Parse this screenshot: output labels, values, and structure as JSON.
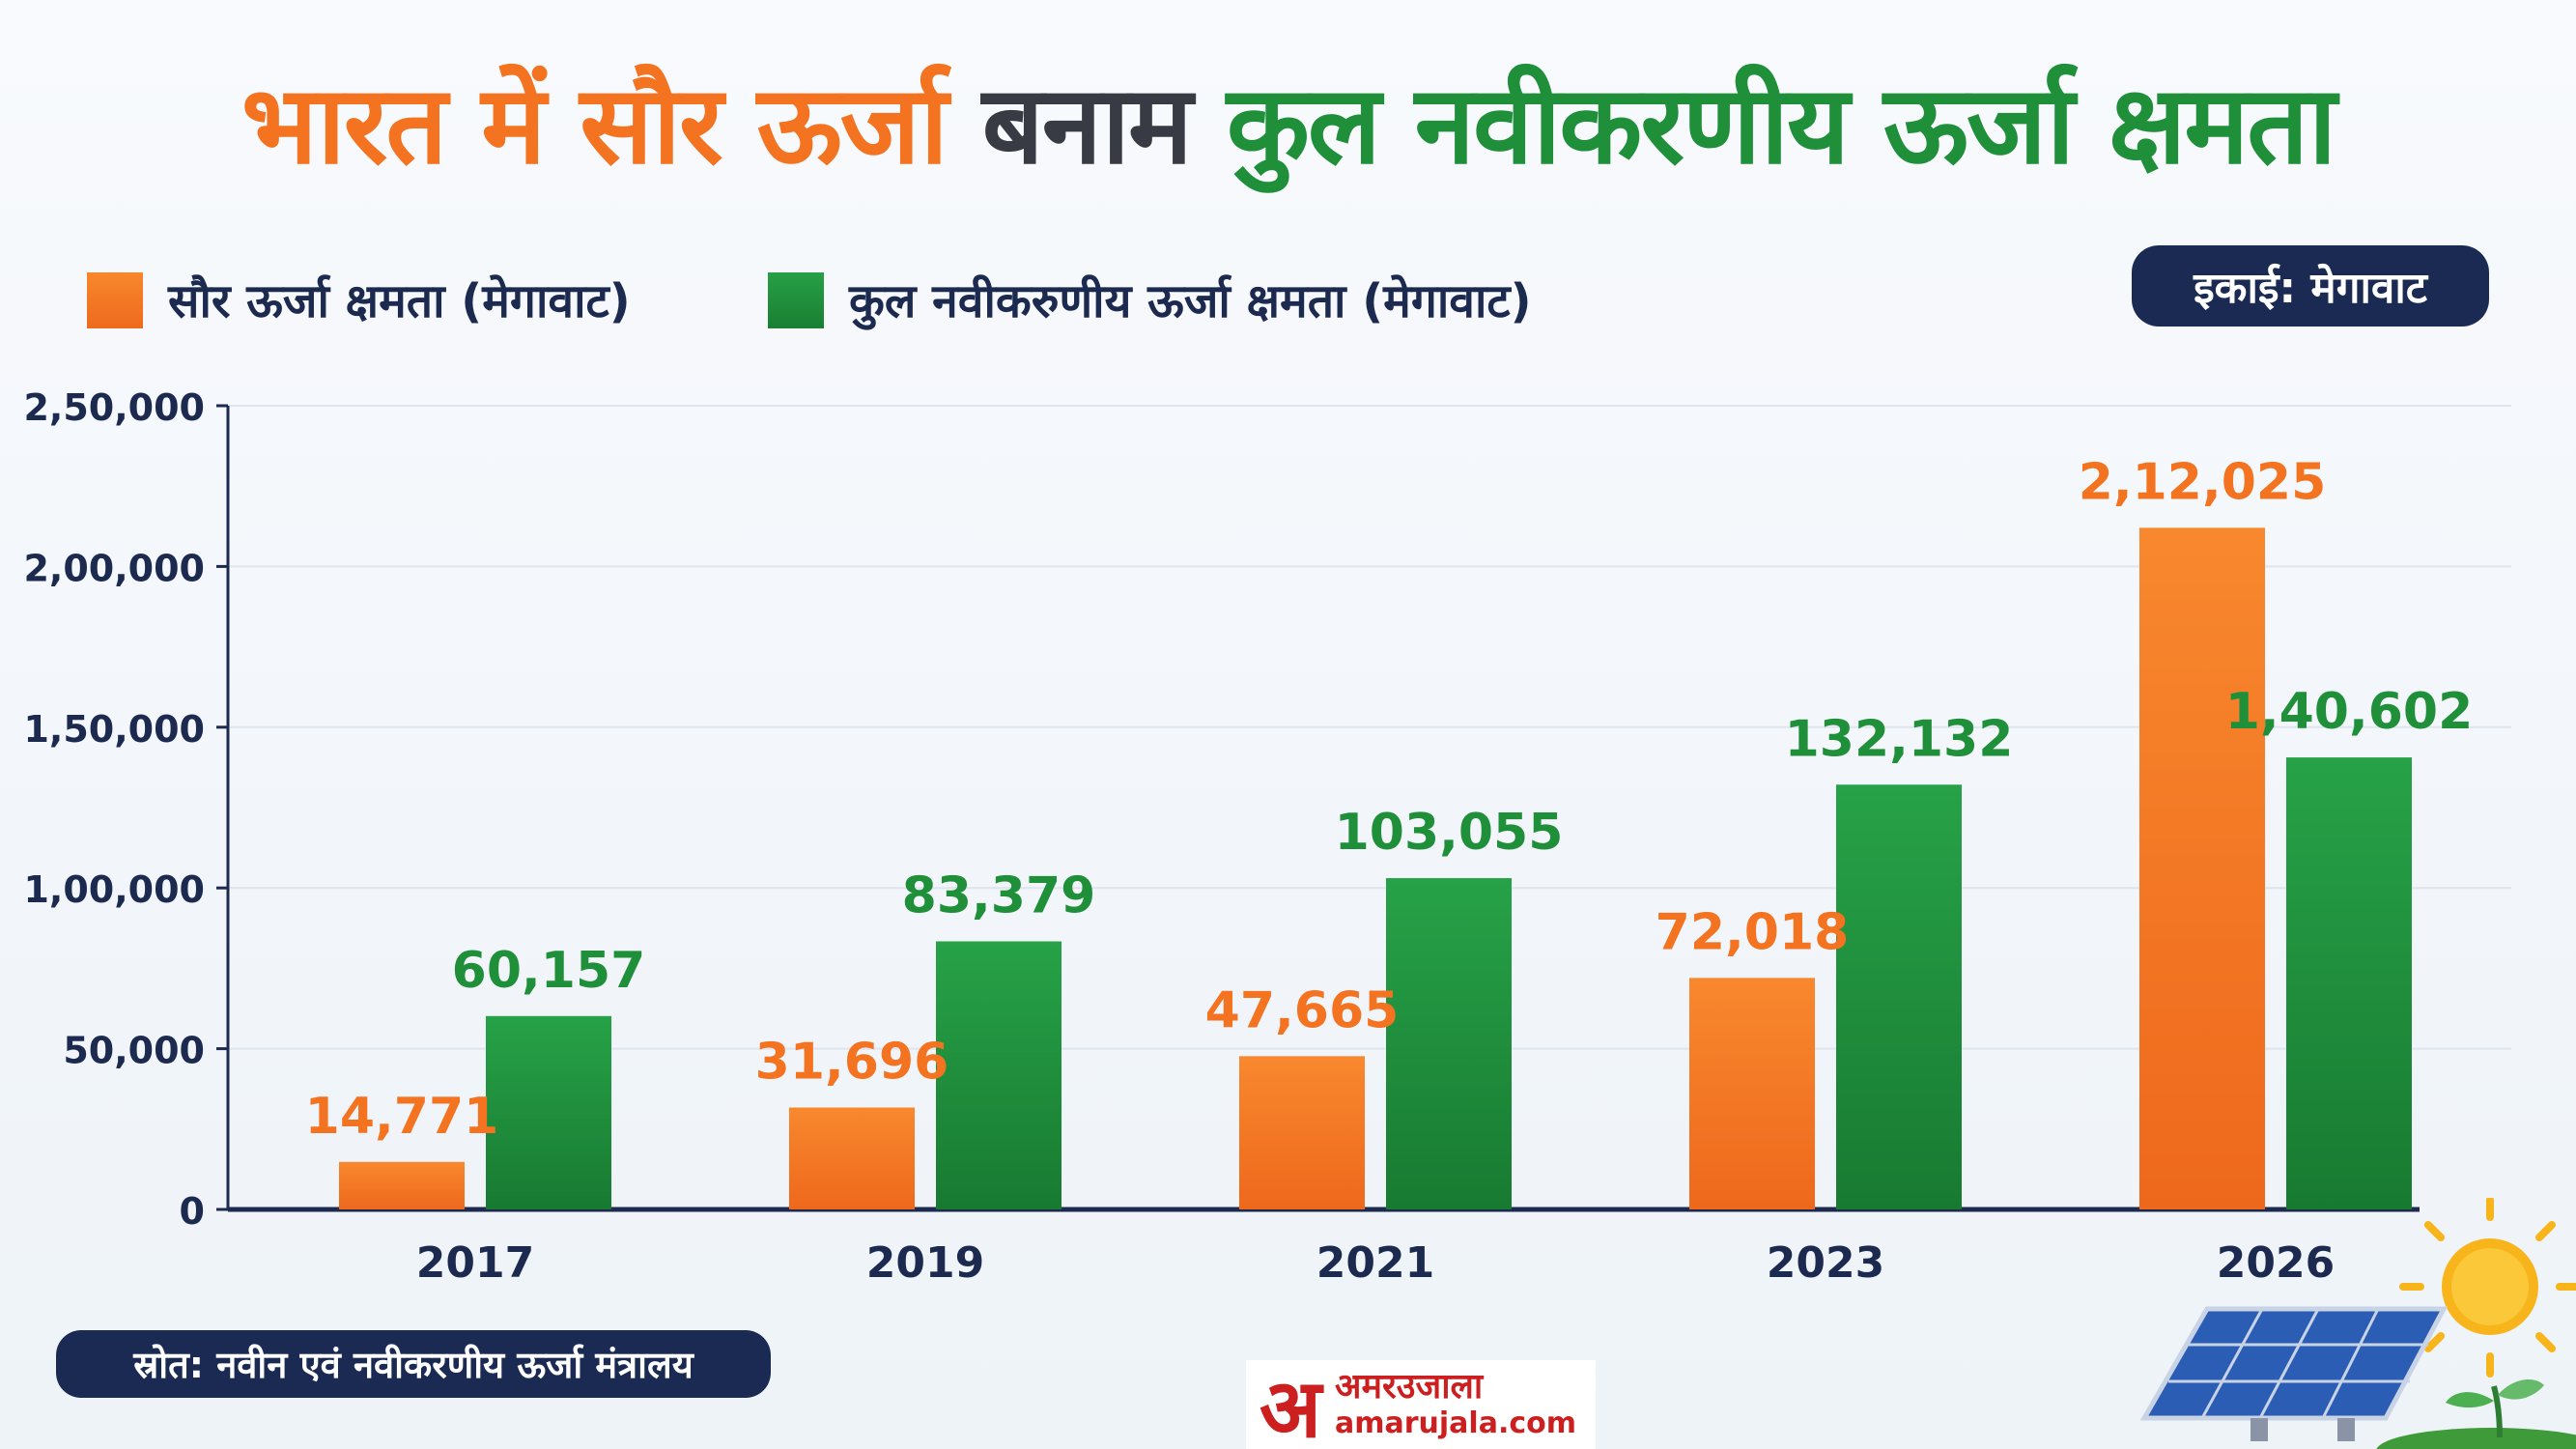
{
  "title": {
    "part1": "भारत में सौर ऊर्जा",
    "part2": "बनाम",
    "part3": "कुल नवीकरणीय ऊर्जा क्षमता"
  },
  "unit_badge": "इकाई: मेगावाट",
  "source": "स्रोत:  नवीन एवं नवीकरणीय ऊर्जा मंत्रालय",
  "logo": {
    "hindi": "अमरउजाला",
    "latin": "amarujala.com",
    "mark": "अ"
  },
  "colors": {
    "solar": "#f47320",
    "total": "#1f8f3a",
    "navy": "#1b2a52"
  },
  "chart_data": {
    "type": "bar",
    "categories": [
      "2017",
      "2019",
      "2021",
      "2023",
      "2026"
    ],
    "series": [
      {
        "name": "सौर ऊर्जा क्षमता (मेगावाट)",
        "values": [
          14771,
          31696,
          47665,
          72018,
          212025
        ],
        "labels": [
          "14,771",
          "31,696",
          "47,665",
          "72,018",
          "2,12,025"
        ],
        "color": "#f47320"
      },
      {
        "name": "कुल नवीकरुणीय ऊर्जा क्षमता (मेगावाट)",
        "values": [
          60157,
          83379,
          103055,
          132132,
          140602
        ],
        "labels": [
          "60,157",
          "83,379",
          "103,055",
          "132,132",
          "1,40,602"
        ],
        "color": "#1f8f3a"
      }
    ],
    "yticks": [
      0,
      50000,
      100000,
      150000,
      200000,
      250000
    ],
    "ytick_labels": [
      "0",
      "50,000",
      "1,00,000",
      "1,50,000",
      "2,00,000",
      "2,50,000"
    ],
    "ylim": [
      0,
      250000
    ],
    "grid": true,
    "legend": "top-left"
  }
}
